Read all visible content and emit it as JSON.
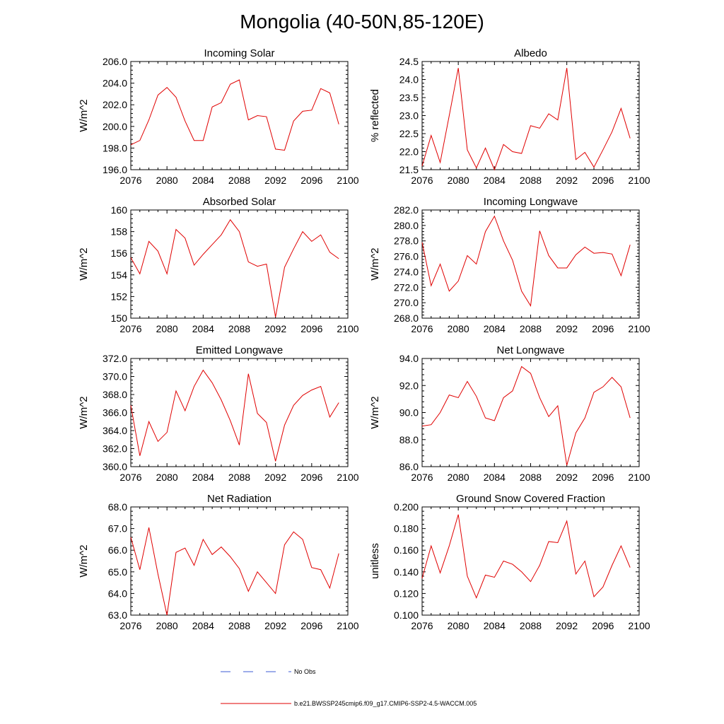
{
  "title": "Mongolia (40-50N,85-120E)",
  "colors": {
    "model": "#e00000",
    "obs": "#3b5bd6"
  },
  "legend": {
    "obs_label": "No Obs",
    "model_label": "b.e21.BWSSP245cmip6.f09_g17.CMIP6-SSP2-4.5-WACCM.005"
  },
  "chart_data": [
    {
      "type": "line",
      "title": "Incoming Solar",
      "ylabel": "W/m^2",
      "xlim": [
        2076,
        2100
      ],
      "xticks": [
        2076,
        2080,
        2084,
        2088,
        2092,
        2096,
        2100
      ],
      "ylim": [
        196.0,
        206.0
      ],
      "yticks": [
        "196.0",
        "198.0",
        "200.0",
        "202.0",
        "204.0",
        "206.0"
      ],
      "x": [
        2076,
        2077,
        2078,
        2079,
        2080,
        2081,
        2082,
        2083,
        2084,
        2085,
        2086,
        2087,
        2088,
        2089,
        2090,
        2091,
        2092,
        2093,
        2094,
        2095,
        2096,
        2097,
        2098,
        2099
      ],
      "series": [
        {
          "name": "model",
          "values": [
            198.3,
            198.7,
            200.6,
            202.9,
            203.6,
            202.7,
            200.5,
            198.7,
            198.7,
            201.8,
            202.2,
            203.9,
            204.3,
            200.6,
            201.0,
            200.9,
            197.9,
            197.8,
            200.5,
            201.4,
            201.5,
            203.5,
            203.1,
            200.2
          ]
        }
      ]
    },
    {
      "type": "line",
      "title": "Albedo",
      "ylabel": "% reflected",
      "xlim": [
        2076,
        2100
      ],
      "xticks": [
        2076,
        2080,
        2084,
        2088,
        2092,
        2096,
        2100
      ],
      "ylim": [
        21.5,
        24.5
      ],
      "yticks": [
        "21.5",
        "22.0",
        "22.5",
        "23.0",
        "23.5",
        "24.0",
        "24.5"
      ],
      "x": [
        2076,
        2077,
        2078,
        2079,
        2080,
        2081,
        2082,
        2083,
        2084,
        2085,
        2086,
        2087,
        2088,
        2089,
        2090,
        2091,
        2092,
        2093,
        2094,
        2095,
        2096,
        2097,
        2098,
        2099
      ],
      "series": [
        {
          "name": "model",
          "values": [
            21.6,
            22.45,
            21.7,
            23.0,
            24.32,
            22.05,
            21.55,
            22.1,
            21.5,
            22.2,
            22.0,
            21.95,
            22.72,
            22.65,
            23.05,
            22.88,
            24.32,
            21.78,
            21.98,
            21.57,
            22.05,
            22.55,
            23.2,
            22.37
          ]
        }
      ]
    },
    {
      "type": "line",
      "title": "Absorbed Solar",
      "ylabel": "W/m^2",
      "xlim": [
        2076,
        2100
      ],
      "xticks": [
        2076,
        2080,
        2084,
        2088,
        2092,
        2096,
        2100
      ],
      "ylim": [
        150,
        160
      ],
      "yticks": [
        "150",
        "152",
        "154",
        "156",
        "158",
        "160"
      ],
      "x": [
        2076,
        2077,
        2078,
        2079,
        2080,
        2081,
        2082,
        2083,
        2084,
        2085,
        2086,
        2087,
        2088,
        2089,
        2090,
        2091,
        2092,
        2093,
        2094,
        2095,
        2096,
        2097,
        2098,
        2099
      ],
      "series": [
        {
          "name": "model",
          "values": [
            155.6,
            154.1,
            157.1,
            156.2,
            154.1,
            158.2,
            157.4,
            154.9,
            155.9,
            156.8,
            157.7,
            159.1,
            158.0,
            155.2,
            154.8,
            155.0,
            150.1,
            154.7,
            156.4,
            158.0,
            157.1,
            157.7,
            156.1,
            155.5
          ]
        }
      ]
    },
    {
      "type": "line",
      "title": "Incoming Longwave",
      "ylabel": "W/m^2",
      "xlim": [
        2076,
        2100
      ],
      "xticks": [
        2076,
        2080,
        2084,
        2088,
        2092,
        2096,
        2100
      ],
      "ylim": [
        268.0,
        282.0
      ],
      "yticks": [
        "268.0",
        "270.0",
        "272.0",
        "274.0",
        "276.0",
        "278.0",
        "280.0",
        "282.0"
      ],
      "x": [
        2076,
        2077,
        2078,
        2079,
        2080,
        2081,
        2082,
        2083,
        2084,
        2085,
        2086,
        2087,
        2088,
        2089,
        2090,
        2091,
        2092,
        2093,
        2094,
        2095,
        2096,
        2097,
        2098,
        2099
      ],
      "series": [
        {
          "name": "model",
          "values": [
            277.8,
            272.2,
            275.0,
            271.5,
            272.8,
            276.1,
            275.0,
            279.2,
            281.2,
            278.0,
            275.5,
            271.5,
            269.6,
            279.3,
            276.1,
            274.5,
            274.5,
            276.2,
            277.2,
            276.4,
            276.5,
            276.3,
            273.5,
            277.5
          ]
        }
      ]
    },
    {
      "type": "line",
      "title": "Emitted Longwave",
      "ylabel": "W/m^2",
      "xlim": [
        2076,
        2100
      ],
      "xticks": [
        2076,
        2080,
        2084,
        2088,
        2092,
        2096,
        2100
      ],
      "ylim": [
        360.0,
        372.0
      ],
      "yticks": [
        "360.0",
        "362.0",
        "364.0",
        "366.0",
        "368.0",
        "370.0",
        "372.0"
      ],
      "x": [
        2076,
        2077,
        2078,
        2079,
        2080,
        2081,
        2082,
        2083,
        2084,
        2085,
        2086,
        2087,
        2088,
        2089,
        2090,
        2091,
        2092,
        2093,
        2094,
        2095,
        2096,
        2097,
        2098,
        2099
      ],
      "series": [
        {
          "name": "model",
          "values": [
            366.8,
            361.2,
            365.0,
            362.8,
            363.8,
            368.4,
            366.2,
            368.9,
            370.7,
            369.3,
            367.4,
            365.1,
            362.4,
            370.3,
            365.9,
            364.9,
            360.6,
            364.6,
            366.8,
            367.9,
            368.5,
            368.9,
            365.5,
            367.1
          ]
        }
      ]
    },
    {
      "type": "line",
      "title": "Net Longwave",
      "ylabel": "W/m^2",
      "xlim": [
        2076,
        2100
      ],
      "xticks": [
        2076,
        2080,
        2084,
        2088,
        2092,
        2096,
        2100
      ],
      "ylim": [
        86.0,
        94.0
      ],
      "yticks": [
        "86.0",
        "88.0",
        "90.0",
        "92.0",
        "94.0"
      ],
      "x": [
        2076,
        2077,
        2078,
        2079,
        2080,
        2081,
        2082,
        2083,
        2084,
        2085,
        2086,
        2087,
        2088,
        2089,
        2090,
        2091,
        2092,
        2093,
        2094,
        2095,
        2096,
        2097,
        2098,
        2099
      ],
      "series": [
        {
          "name": "model",
          "values": [
            89.0,
            89.1,
            90.0,
            91.3,
            91.1,
            92.3,
            91.2,
            89.6,
            89.4,
            91.1,
            91.6,
            93.4,
            92.9,
            91.1,
            89.7,
            90.5,
            86.1,
            88.5,
            89.6,
            91.5,
            91.9,
            92.6,
            91.9,
            89.6
          ]
        }
      ]
    },
    {
      "type": "line",
      "title": "Net Radiation",
      "ylabel": "W/m^2",
      "xlim": [
        2076,
        2100
      ],
      "xticks": [
        2076,
        2080,
        2084,
        2088,
        2092,
        2096,
        2100
      ],
      "ylim": [
        63.0,
        68.0
      ],
      "yticks": [
        "63.0",
        "64.0",
        "65.0",
        "66.0",
        "67.0",
        "68.0"
      ],
      "x": [
        2076,
        2077,
        2078,
        2079,
        2080,
        2081,
        2082,
        2083,
        2084,
        2085,
        2086,
        2087,
        2088,
        2089,
        2090,
        2091,
        2092,
        2093,
        2094,
        2095,
        2096,
        2097,
        2098,
        2099
      ],
      "series": [
        {
          "name": "model",
          "values": [
            66.6,
            65.1,
            67.05,
            64.9,
            63.0,
            65.9,
            66.1,
            65.3,
            66.5,
            65.8,
            66.15,
            65.7,
            65.15,
            64.1,
            65.0,
            64.5,
            64.0,
            66.25,
            66.85,
            66.5,
            65.2,
            65.1,
            64.25,
            65.85
          ]
        }
      ]
    },
    {
      "type": "line",
      "title": "Ground Snow Covered Fraction",
      "ylabel": "unitless",
      "xlim": [
        2076,
        2100
      ],
      "xticks": [
        2076,
        2080,
        2084,
        2088,
        2092,
        2096,
        2100
      ],
      "ylim": [
        0.1,
        0.2
      ],
      "yticks": [
        "0.100",
        "0.120",
        "0.140",
        "0.160",
        "0.180",
        "0.200"
      ],
      "x": [
        2076,
        2077,
        2078,
        2079,
        2080,
        2081,
        2082,
        2083,
        2084,
        2085,
        2086,
        2087,
        2088,
        2089,
        2090,
        2091,
        2092,
        2093,
        2094,
        2095,
        2096,
        2097,
        2098,
        2099
      ],
      "series": [
        {
          "name": "model",
          "values": [
            0.134,
            0.164,
            0.139,
            0.164,
            0.193,
            0.136,
            0.116,
            0.137,
            0.135,
            0.15,
            0.147,
            0.14,
            0.131,
            0.146,
            0.168,
            0.167,
            0.187,
            0.138,
            0.15,
            0.117,
            0.126,
            0.146,
            0.164,
            0.144
          ]
        }
      ]
    }
  ]
}
